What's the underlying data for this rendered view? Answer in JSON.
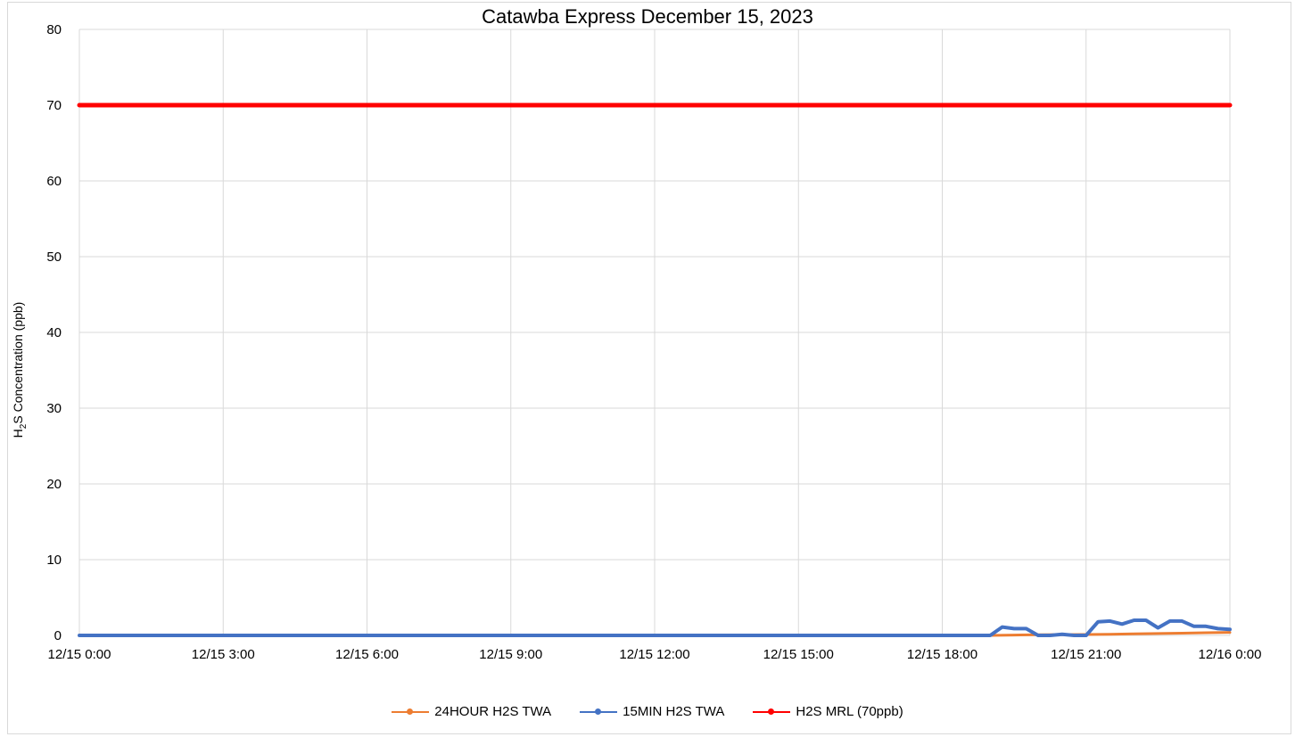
{
  "chart_data": {
    "type": "line",
    "title": "Catawba Express December 15, 2023",
    "ylabel_parts": [
      "H",
      "2",
      "S Concentration (ppb)"
    ],
    "xlabel": "",
    "ylim": [
      0,
      80
    ],
    "yticks": [
      0,
      10,
      20,
      30,
      40,
      50,
      60,
      70,
      80
    ],
    "xlim": [
      0,
      24
    ],
    "xticks": [
      {
        "t": 0,
        "label": "12/15 0:00"
      },
      {
        "t": 3,
        "label": "12/15 3:00"
      },
      {
        "t": 6,
        "label": "12/15 6:00"
      },
      {
        "t": 9,
        "label": "12/15 9:00"
      },
      {
        "t": 12,
        "label": "12/15 12:00"
      },
      {
        "t": 15,
        "label": "12/15 15:00"
      },
      {
        "t": 18,
        "label": "12/15 18:00"
      },
      {
        "t": 21,
        "label": "12/15 21:00"
      },
      {
        "t": 24,
        "label": "12/16 0:00"
      }
    ],
    "grid": true,
    "legend_position": "bottom",
    "series": [
      {
        "name": "24HOUR H2S TWA",
        "color": "#ED7D31",
        "x": [
          0,
          3,
          6,
          9,
          12,
          15,
          18,
          19,
          19.5,
          20,
          20.5,
          21,
          21.5,
          22,
          22.5,
          23,
          23.5,
          24
        ],
        "y": [
          0,
          0,
          0,
          0,
          0,
          0,
          0,
          0,
          0.05,
          0.08,
          0.1,
          0.12,
          0.15,
          0.2,
          0.25,
          0.3,
          0.35,
          0.4
        ]
      },
      {
        "name": "15MIN H2S TWA",
        "color": "#4472C4",
        "x": [
          0,
          3,
          6,
          9,
          12,
          15,
          18,
          19,
          19.25,
          19.5,
          19.75,
          20,
          20.25,
          20.5,
          20.75,
          21,
          21.25,
          21.5,
          21.75,
          22,
          22.25,
          22.5,
          22.75,
          23,
          23.25,
          23.5,
          23.75,
          24
        ],
        "y": [
          0,
          0,
          0,
          0,
          0,
          0,
          0,
          0,
          1.1,
          0.9,
          0.9,
          0,
          0,
          0.15,
          0,
          0,
          1.8,
          1.9,
          1.5,
          2.0,
          2.0,
          1.0,
          1.9,
          1.9,
          1.2,
          1.2,
          0.9,
          0.8
        ]
      },
      {
        "name": "H2S MRL (70ppb)",
        "color": "#FF0000",
        "x": [
          0,
          24
        ],
        "y": [
          70,
          70
        ]
      }
    ]
  }
}
